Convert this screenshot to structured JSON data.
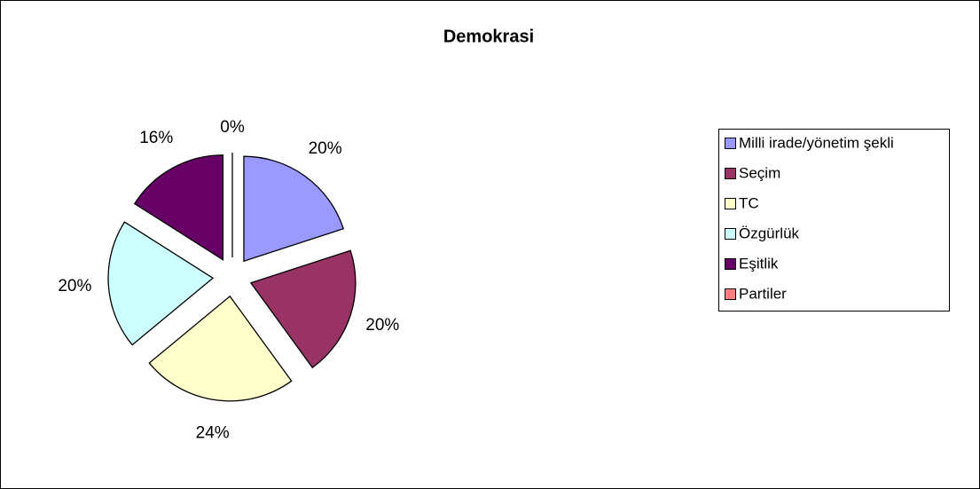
{
  "chart_data": {
    "type": "pie",
    "title": "Demokrasi",
    "categories": [
      "Milli irade/yönetim şekli",
      "Seçim",
      "TC",
      "Özgürlük",
      "Eşitlik",
      "Partiler"
    ],
    "values": [
      20,
      20,
      24,
      20,
      16,
      0
    ],
    "value_labels": [
      "20%",
      "20%",
      "24%",
      "20%",
      "16%",
      "0%"
    ],
    "colors": [
      "#9999ff",
      "#993366",
      "#ffffcc",
      "#ccffff",
      "#660066",
      "#ff8080"
    ],
    "legend": "right"
  }
}
